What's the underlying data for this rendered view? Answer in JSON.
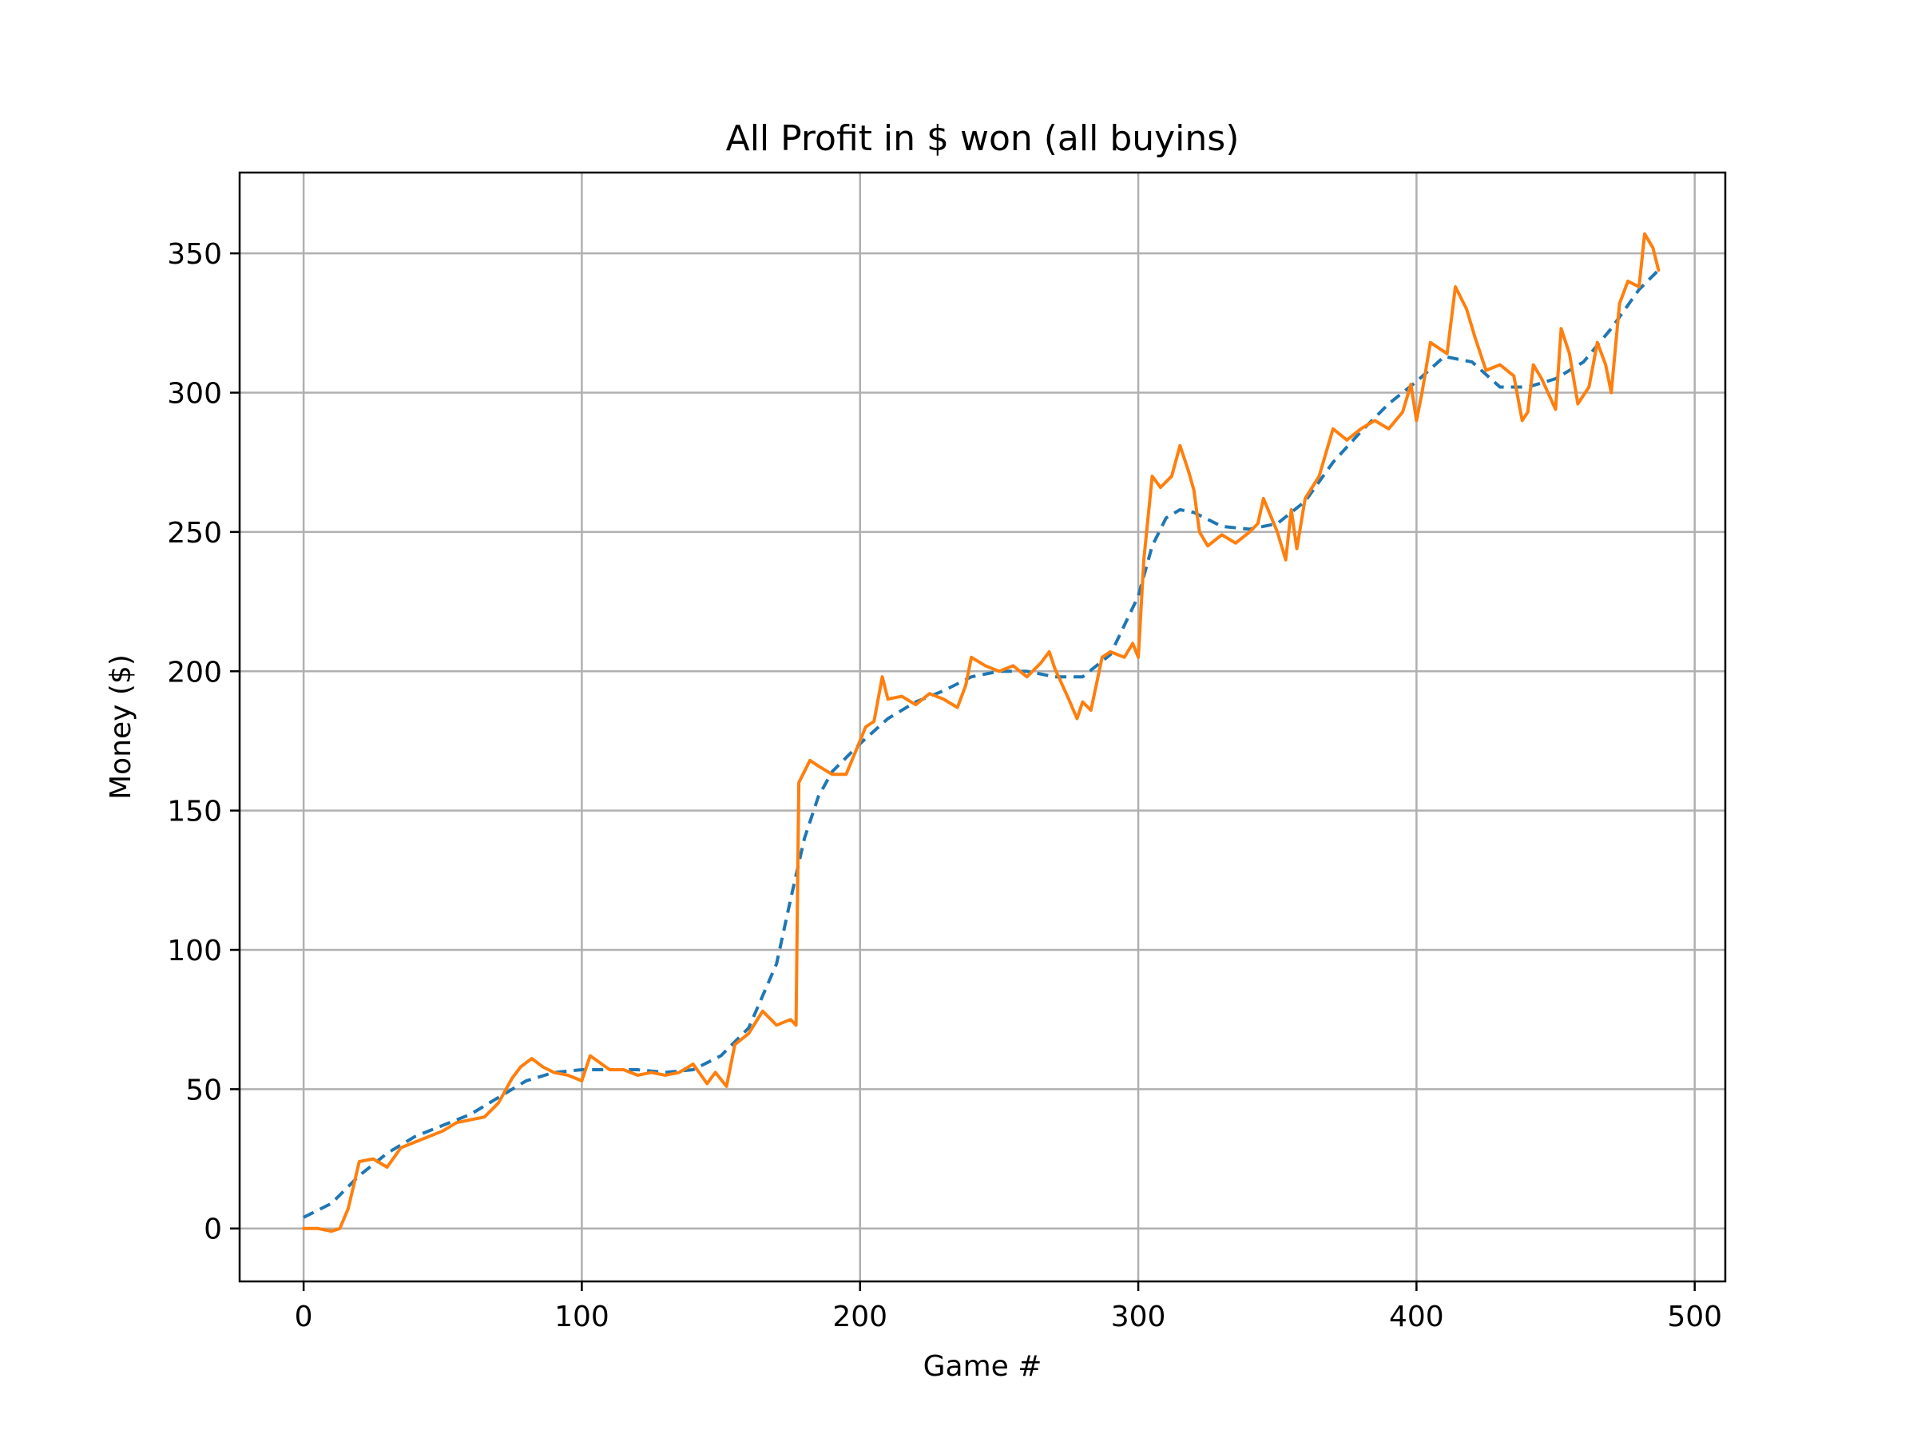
{
  "chart_data": {
    "type": "line",
    "title": "All Profit in $ won (all buyins)",
    "xlabel": "Game #",
    "ylabel": "Money ($)",
    "xlim": [
      -23,
      511
    ],
    "ylim": [
      -19,
      379
    ],
    "xticks": [
      0,
      100,
      200,
      300,
      400,
      500
    ],
    "yticks": [
      0,
      50,
      100,
      150,
      200,
      250,
      300,
      350
    ],
    "grid": true,
    "colors": {
      "trend": "#1f77b4",
      "profit": "#ff7f0e",
      "grid": "#b0b0b0"
    },
    "series": [
      {
        "key": "trend",
        "style": "dashed",
        "x": [
          0,
          10,
          20,
          30,
          40,
          50,
          60,
          70,
          80,
          90,
          100,
          110,
          120,
          130,
          140,
          150,
          160,
          170,
          175,
          180,
          185,
          190,
          200,
          210,
          220,
          230,
          240,
          250,
          260,
          270,
          280,
          290,
          300,
          305,
          310,
          315,
          320,
          330,
          340,
          350,
          360,
          370,
          380,
          390,
          400,
          410,
          420,
          430,
          440,
          450,
          460,
          470,
          480,
          487
        ],
        "y": [
          4,
          9,
          19,
          27,
          33,
          37,
          41,
          47,
          53,
          56,
          57,
          57,
          57,
          56,
          57,
          62,
          72,
          95,
          118,
          140,
          155,
          164,
          174,
          183,
          189,
          193,
          198,
          200,
          200,
          198,
          198,
          206,
          227,
          245,
          255,
          258,
          257,
          252,
          251,
          253,
          261,
          275,
          286,
          296,
          304,
          313,
          311,
          302,
          302,
          305,
          311,
          323,
          337,
          344
        ]
      },
      {
        "key": "profit",
        "style": "solid",
        "x": [
          0,
          5,
          10,
          13,
          16,
          20,
          25,
          30,
          35,
          40,
          45,
          50,
          55,
          60,
          65,
          70,
          75,
          78,
          82,
          86,
          90,
          95,
          100,
          103,
          110,
          115,
          120,
          125,
          130,
          135,
          140,
          145,
          148,
          152,
          155,
          160,
          165,
          170,
          175,
          177,
          178,
          182,
          185,
          190,
          195,
          200,
          202,
          205,
          208,
          210,
          215,
          220,
          225,
          230,
          235,
          238,
          240,
          245,
          250,
          255,
          260,
          265,
          268,
          270,
          275,
          278,
          280,
          283,
          287,
          290,
          295,
          298,
          300,
          302,
          305,
          308,
          312,
          315,
          318,
          320,
          322,
          325,
          330,
          335,
          340,
          343,
          345,
          350,
          353,
          355,
          357,
          360,
          365,
          370,
          375,
          380,
          385,
          390,
          395,
          398,
          400,
          402,
          405,
          408,
          411,
          414,
          418,
          421,
          425,
          430,
          435,
          438,
          440,
          442,
          445,
          450,
          452,
          455,
          458,
          462,
          465,
          468,
          470,
          473,
          476,
          480,
          482,
          485,
          487
        ],
        "y": [
          0,
          0,
          -1,
          0,
          7,
          24,
          25,
          22,
          29,
          31,
          33,
          35,
          38,
          39,
          40,
          45,
          54,
          58,
          61,
          58,
          56,
          55,
          53,
          62,
          57,
          57,
          55,
          56,
          55,
          56,
          59,
          52,
          56,
          51,
          66,
          70,
          78,
          73,
          75,
          73,
          160,
          168,
          166,
          163,
          163,
          175,
          180,
          182,
          198,
          190,
          191,
          188,
          192,
          190,
          187,
          195,
          205,
          202,
          200,
          202,
          198,
          203,
          207,
          201,
          190,
          183,
          189,
          186,
          205,
          207,
          205,
          210,
          205,
          240,
          270,
          266,
          270,
          281,
          272,
          265,
          250,
          245,
          249,
          246,
          250,
          253,
          262,
          250,
          240,
          258,
          244,
          262,
          270,
          287,
          283,
          287,
          290,
          287,
          293,
          303,
          290,
          300,
          318,
          316,
          314,
          338,
          330,
          320,
          308,
          310,
          306,
          290,
          293,
          310,
          305,
          294,
          323,
          314,
          296,
          302,
          318,
          310,
          300,
          332,
          340,
          338,
          357,
          352,
          344
        ]
      }
    ]
  }
}
